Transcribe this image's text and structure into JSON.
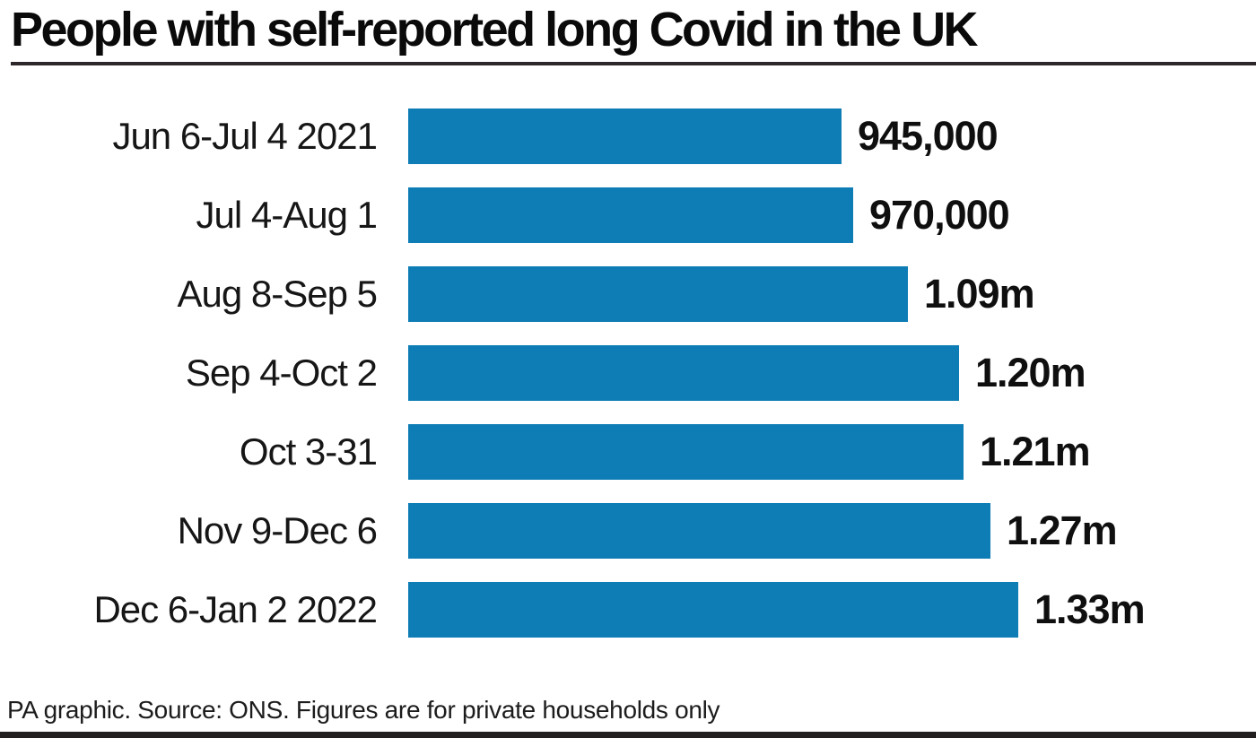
{
  "header": {
    "title": "People with self-reported long Covid in the UK"
  },
  "footer": {
    "text": "PA graphic. Source: ONS. Figures are for private households only"
  },
  "colors": {
    "bar": "#0e7db5",
    "title_rule": "#2d262a",
    "bottom_bar": "#231f20",
    "text": "#141414"
  },
  "chart_data": {
    "type": "bar",
    "orientation": "horizontal",
    "title": "People with self-reported long Covid in the UK",
    "source": "PA graphic. Source: ONS. Figures are for private households only",
    "categories": [
      "Jun 6-Jul 4 2021",
      "Jul 4-Aug 1",
      "Aug 8-Sep 5",
      "Sep 4-Oct 2",
      "Oct 3-31",
      "Nov 9-Dec 6",
      "Dec 6-Jan 2 2022"
    ],
    "values": [
      945000,
      970000,
      1090000,
      1200000,
      1210000,
      1270000,
      1330000
    ],
    "value_labels": [
      "945,000",
      "970,000",
      "1.09m",
      "1.20m",
      "1.21m",
      "1.27m",
      "1.33m"
    ],
    "xlim": [
      0,
      1330000
    ],
    "grid": false,
    "legend": false
  }
}
